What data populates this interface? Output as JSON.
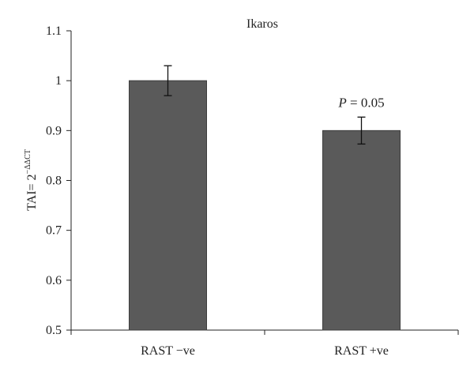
{
  "chart_data": {
    "type": "bar",
    "title": "Ikaros",
    "ylabel": {
      "prefix": "TAI= 2",
      "superscript": "−ΔΔCT"
    },
    "xlabel": "",
    "categories": [
      "RAST −ve",
      "RAST +ve"
    ],
    "values": [
      1.0,
      0.9
    ],
    "error": [
      0.03,
      0.027
    ],
    "ylim": [
      0.5,
      1.1
    ],
    "yticks": [
      0.5,
      0.6,
      0.7,
      0.8,
      0.9,
      1.0,
      1.1
    ],
    "ytick_labels": [
      "0.5",
      "0.6",
      "0.7",
      "0.8",
      "0.9",
      "1",
      "1.1"
    ],
    "grid": false,
    "bar_color": "#5a5a5a",
    "annotations": [
      {
        "category_index": 1,
        "p_label": "P",
        "text": " = 0.05"
      }
    ]
  }
}
